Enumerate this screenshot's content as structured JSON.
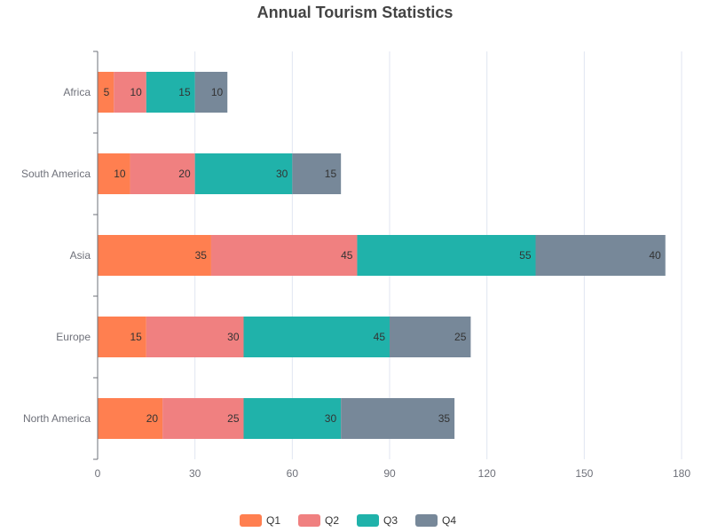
{
  "chart_data": {
    "type": "bar",
    "orientation": "horizontal",
    "stacked": true,
    "title": "Annual Tourism Statistics",
    "categories": [
      "Africa",
      "South America",
      "Asia",
      "Europe",
      "North America"
    ],
    "series": [
      {
        "name": "Q1",
        "color": "#ff7f50",
        "values": [
          5,
          10,
          35,
          15,
          20
        ]
      },
      {
        "name": "Q2",
        "color": "#f08080",
        "values": [
          10,
          20,
          45,
          30,
          25
        ]
      },
      {
        "name": "Q3",
        "color": "#20b2aa",
        "values": [
          15,
          30,
          55,
          45,
          30
        ]
      },
      {
        "name": "Q4",
        "color": "#778899",
        "values": [
          10,
          15,
          40,
          25,
          35
        ]
      }
    ],
    "xlim": [
      0,
      180
    ],
    "xticks": [
      "0",
      "30",
      "60",
      "90",
      "120",
      "150",
      "180"
    ],
    "grid": true,
    "legend": "bottom-center"
  }
}
